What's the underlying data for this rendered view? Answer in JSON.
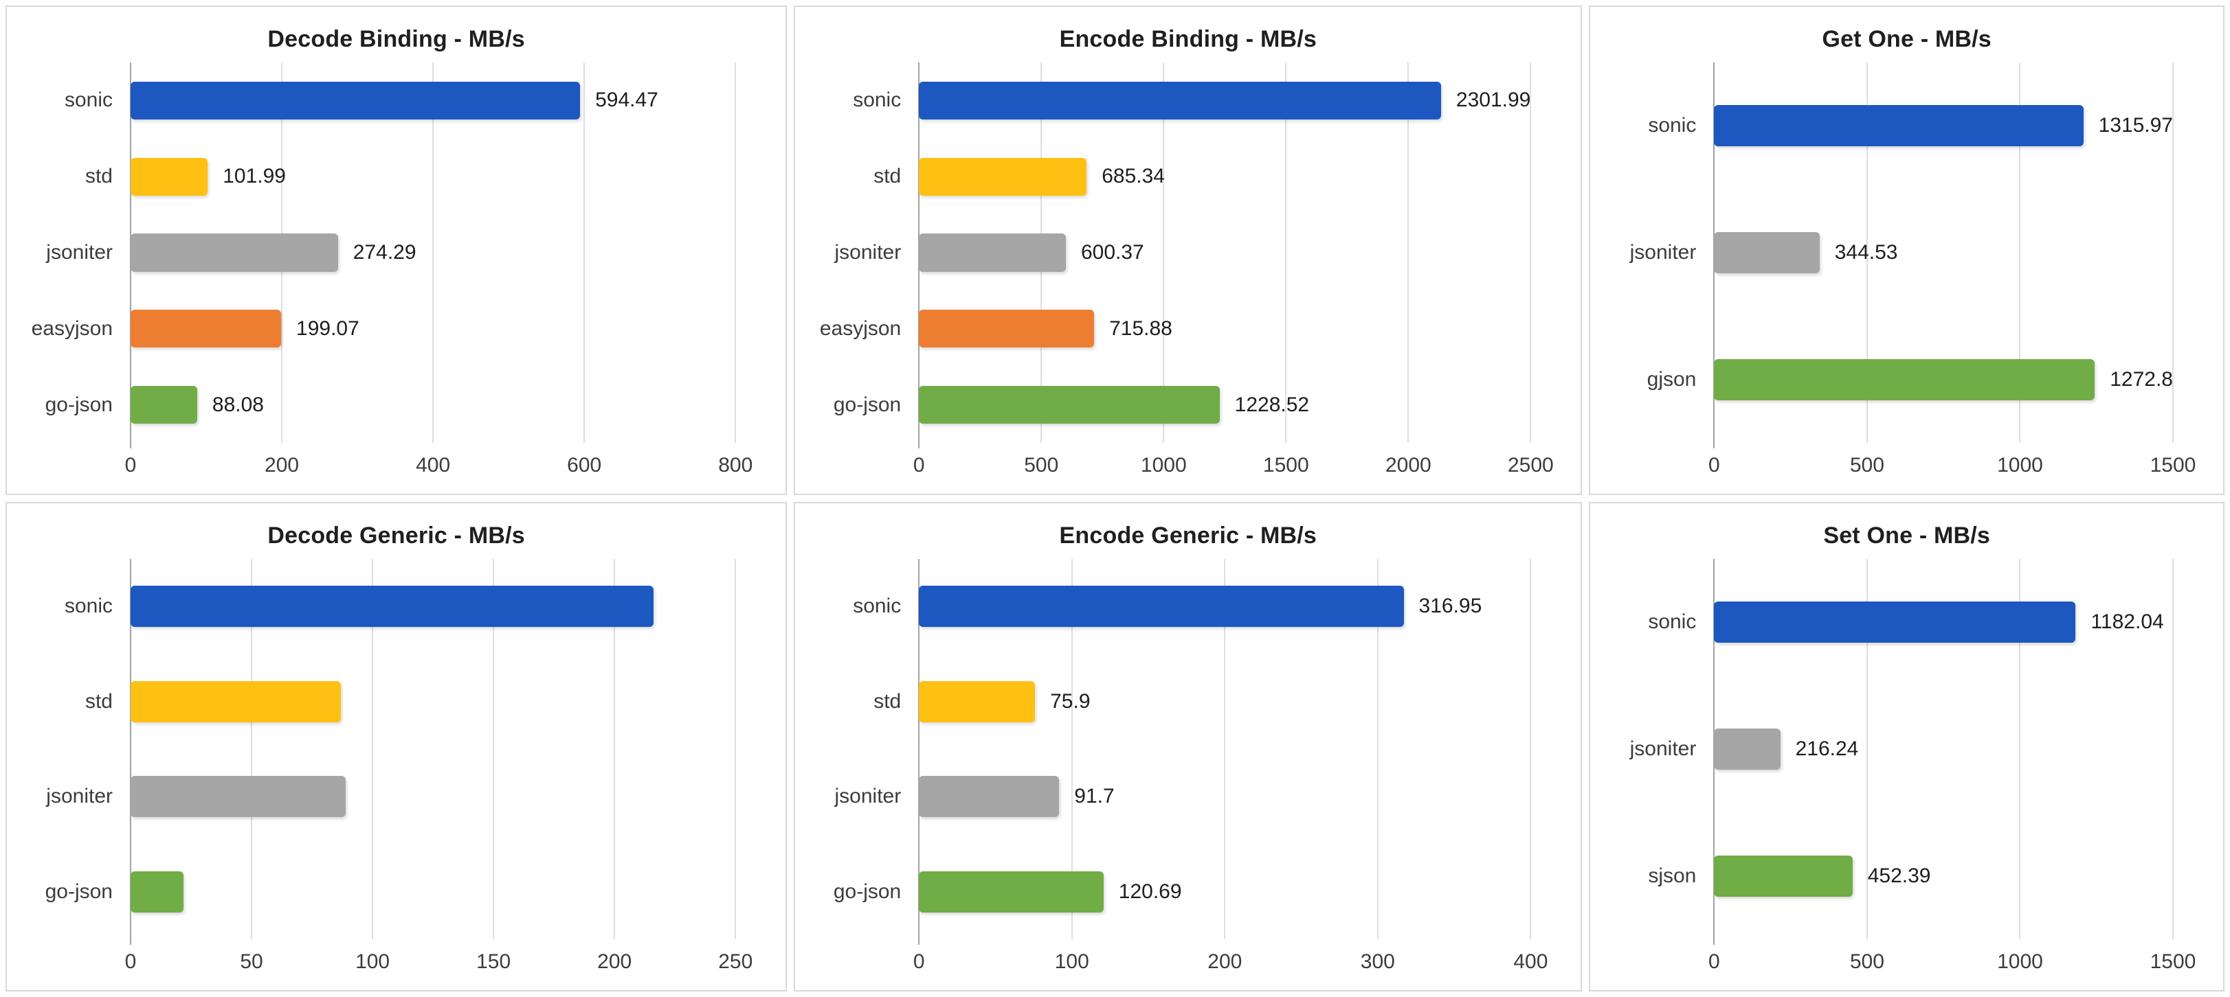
{
  "layout_colors": {
    "background": "#ffffff",
    "panel_border": "#d9d9d9",
    "gridline": "#dedede",
    "axis_zero_line": "#a3a3a3",
    "text": "#3c3c3c"
  },
  "palette": {
    "sonic_blue": "#1d57c0",
    "std_gold": "#fdc013",
    "jsoniter_gray": "#a6a6a6",
    "easyjson_orange": "#ed7d31",
    "green": "#70ad47"
  },
  "chart_data": [
    {
      "type": "bar",
      "orientation": "horizontal",
      "title": "Decode Binding - MB/s",
      "xlim": [
        0,
        800
      ],
      "ticks": [
        0,
        200,
        400,
        600,
        800
      ],
      "tick_labels": [
        "0",
        "200",
        "400",
        "600",
        "800"
      ],
      "grid": "vertical",
      "legend": "none",
      "bars": [
        {
          "label": "sonic",
          "value": 594.47,
          "value_label": "594.47",
          "color": "#1d57c0"
        },
        {
          "label": "std",
          "value": 101.99,
          "value_label": "101.99",
          "color": "#fdc013"
        },
        {
          "label": "jsoniter",
          "value": 274.29,
          "value_label": "274.29",
          "color": "#a6a6a6"
        },
        {
          "label": "easyjson",
          "value": 199.07,
          "value_label": "199.07",
          "color": "#ed7d31"
        },
        {
          "label": "go-json",
          "value": 88.08,
          "value_label": "88.08",
          "color": "#70ad47"
        }
      ]
    },
    {
      "type": "bar",
      "orientation": "horizontal",
      "title": "Encode Binding - MB/s",
      "xlim": [
        0,
        2500
      ],
      "ticks": [
        0,
        500,
        1000,
        1500,
        2000,
        2500
      ],
      "tick_labels": [
        "0",
        "500",
        "1000",
        "1500",
        "2000",
        "2500"
      ],
      "grid": "vertical",
      "legend": "none",
      "bars": [
        {
          "label": "sonic",
          "value": 2301.99,
          "value_label": "2301.99",
          "color": "#1d57c0"
        },
        {
          "label": "std",
          "value": 685.34,
          "value_label": "685.34",
          "color": "#fdc013"
        },
        {
          "label": "jsoniter",
          "value": 600.37,
          "value_label": "600.37",
          "color": "#a6a6a6"
        },
        {
          "label": "easyjson",
          "value": 715.88,
          "value_label": "715.88",
          "color": "#ed7d31"
        },
        {
          "label": "go-json",
          "value": 1228.52,
          "value_label": "1228.52",
          "color": "#70ad47"
        }
      ]
    },
    {
      "type": "bar",
      "orientation": "horizontal",
      "title": "Get One - MB/s",
      "xlim": [
        0,
        1500
      ],
      "ticks": [
        0,
        500,
        1000,
        1500
      ],
      "tick_labels": [
        "0",
        "500",
        "1000",
        "1500"
      ],
      "grid": "vertical",
      "legend": "none",
      "bars": [
        {
          "label": "sonic",
          "value": 1315.97,
          "value_label": "1315.97",
          "color": "#1d57c0"
        },
        {
          "label": "jsoniter",
          "value": 344.53,
          "value_label": "344.53",
          "color": "#a6a6a6"
        },
        {
          "label": "gjson",
          "value": 1272.8,
          "value_label": "1272.8",
          "color": "#70ad47"
        }
      ]
    },
    {
      "type": "bar",
      "orientation": "horizontal",
      "title": "Decode Generic - MB/s",
      "xlim": [
        0,
        250
      ],
      "ticks": [
        0,
        50,
        100,
        150,
        200,
        250
      ],
      "tick_labels": [
        "0",
        "50",
        "100",
        "150",
        "200",
        "250"
      ],
      "grid": "vertical",
      "legend": "none",
      "value_labels_shown": false,
      "values_estimated_from_gridlines": true,
      "bars": [
        {
          "label": "sonic",
          "value": 216,
          "value_label": "",
          "color": "#1d57c0"
        },
        {
          "label": "std",
          "value": 87,
          "value_label": "",
          "color": "#fdc013"
        },
        {
          "label": "jsoniter",
          "value": 89,
          "value_label": "",
          "color": "#a6a6a6"
        },
        {
          "label": "go-json",
          "value": 22,
          "value_label": "",
          "color": "#70ad47"
        }
      ]
    },
    {
      "type": "bar",
      "orientation": "horizontal",
      "title": "Encode Generic - MB/s",
      "xlim": [
        0,
        400
      ],
      "ticks": [
        0,
        100,
        200,
        300,
        400
      ],
      "tick_labels": [
        "0",
        "100",
        "200",
        "300",
        "400"
      ],
      "grid": "vertical",
      "legend": "none",
      "bars": [
        {
          "label": "sonic",
          "value": 316.95,
          "value_label": "316.95",
          "color": "#1d57c0"
        },
        {
          "label": "std",
          "value": 75.9,
          "value_label": "75.9",
          "color": "#fdc013"
        },
        {
          "label": "jsoniter",
          "value": 91.7,
          "value_label": "91.7",
          "color": "#a6a6a6"
        },
        {
          "label": "go-json",
          "value": 120.69,
          "value_label": "120.69",
          "color": "#70ad47"
        }
      ]
    },
    {
      "type": "bar",
      "orientation": "horizontal",
      "title": "Set One - MB/s",
      "xlim": [
        0,
        1500
      ],
      "ticks": [
        0,
        500,
        1000,
        1500
      ],
      "tick_labels": [
        "0",
        "500",
        "1000",
        "1500"
      ],
      "grid": "vertical",
      "legend": "none",
      "bars": [
        {
          "label": "sonic",
          "value": 1182.04,
          "value_label": "1182.04",
          "color": "#1d57c0"
        },
        {
          "label": "jsoniter",
          "value": 216.24,
          "value_label": "216.24",
          "color": "#a6a6a6"
        },
        {
          "label": "sjson",
          "value": 452.39,
          "value_label": "452.39",
          "color": "#70ad47"
        }
      ]
    }
  ]
}
